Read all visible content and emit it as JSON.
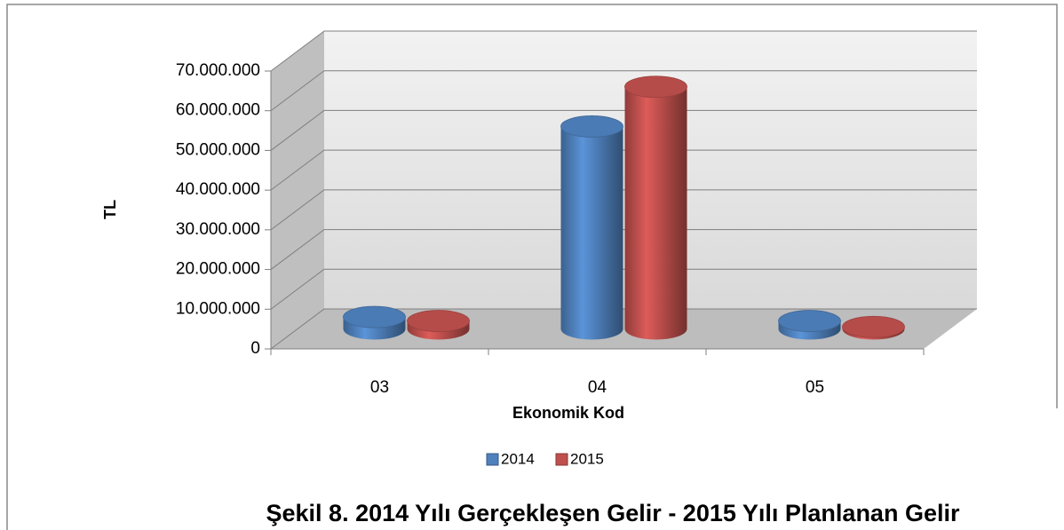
{
  "chart_data": {
    "type": "bar3d",
    "caption": "Şekil 8. 2014 Yılı Gerçekleşen Gelir - 2015 Yılı Planlanan Gelir",
    "y_label": "TL",
    "x_label": "Ekonomik Kod",
    "categories": [
      "03",
      "04",
      "05"
    ],
    "series": [
      {
        "name": "2014",
        "color": "#4f81bd",
        "values": [
          3000000,
          51000000,
          2000000
        ]
      },
      {
        "name": "2015",
        "color": "#c0504d",
        "values": [
          2000000,
          61000000,
          500000
        ]
      }
    ],
    "ylim": [
      0,
      70000000
    ],
    "yticks": [
      0,
      {
        "value": 10000000,
        "label": "10.000.000"
      },
      {
        "value": 20000000,
        "label": "20.000.000"
      },
      {
        "value": 30000000,
        "label": "30.000.000"
      },
      {
        "value": 40000000,
        "label": "40.000.000"
      },
      {
        "value": 50000000,
        "label": "50.000.000"
      },
      {
        "value": 60000000,
        "label": "60.000.000"
      },
      {
        "value": 70000000,
        "label": "70.000.000"
      }
    ],
    "grid": true,
    "legend": "bottom"
  }
}
